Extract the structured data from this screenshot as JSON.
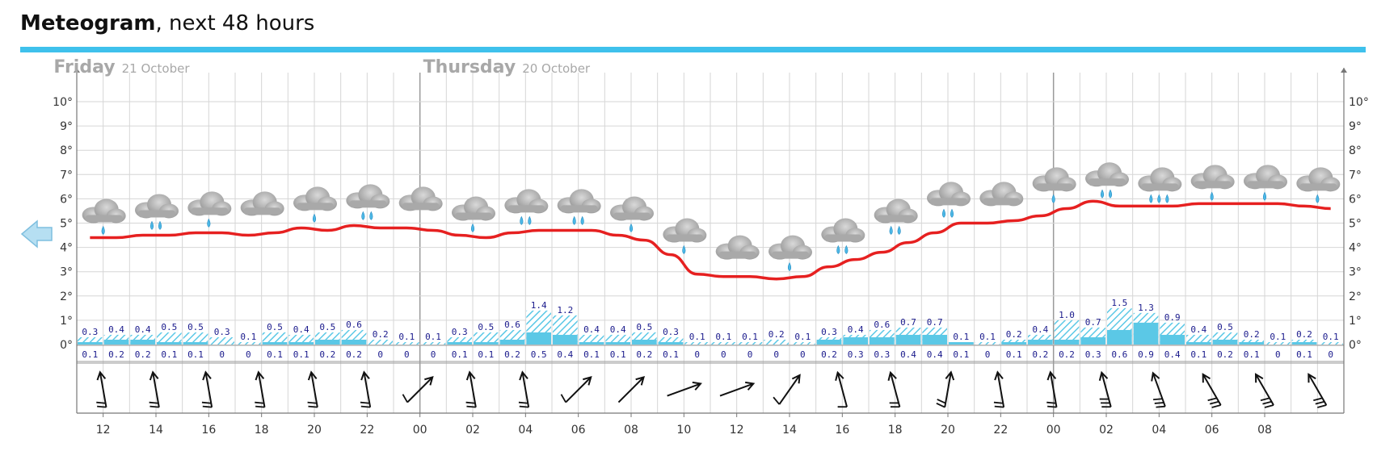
{
  "header": {
    "title_bold": "Meteogram",
    "title_rest": ", next 48 hours"
  },
  "colors": {
    "accent": "#3fc1ec",
    "temperature": "#e62020",
    "precip": "#5bc8e6",
    "grid": "#d6d6d6",
    "day_label": "#a8a8a8",
    "value_text": "#1a1a8c"
  },
  "nav": {
    "back_icon": "arrow-left-icon"
  },
  "chart_data": {
    "type": "meteogram",
    "title": "Meteogram, next 48 hours",
    "x_tick_labels": [
      "12",
      "14",
      "16",
      "18",
      "20",
      "22",
      "00",
      "02",
      "04",
      "06",
      "08",
      "10",
      "12",
      "14",
      "16",
      "18",
      "20",
      "22",
      "00",
      "02",
      "04",
      "06",
      "08"
    ],
    "day_labels": [
      {
        "name": "Thursday",
        "date": "20 October",
        "at_hour": 0
      },
      {
        "name": "Friday",
        "date": "21 October",
        "at_hour": 24
      }
    ],
    "y_ticks": [
      "0°",
      "1°",
      "2°",
      "3°",
      "4°",
      "5°",
      "6°",
      "7°",
      "8°",
      "9°",
      "10°"
    ],
    "ylim": [
      0,
      10
    ],
    "hours": [
      11,
      12,
      13,
      14,
      15,
      16,
      17,
      18,
      19,
      20,
      21,
      22,
      23,
      0,
      1,
      2,
      3,
      4,
      5,
      6,
      7,
      8,
      9,
      10,
      11,
      12,
      13,
      14,
      15,
      16,
      17,
      18,
      19,
      20,
      21,
      22,
      23,
      0,
      1,
      2,
      3,
      4,
      5,
      6,
      7,
      8,
      9,
      10
    ],
    "temperature": [
      4.4,
      4.4,
      4.5,
      4.5,
      4.6,
      4.6,
      4.5,
      4.6,
      4.8,
      4.7,
      4.9,
      4.8,
      4.8,
      4.7,
      4.5,
      4.4,
      4.6,
      4.7,
      4.7,
      4.7,
      4.5,
      4.3,
      3.7,
      2.9,
      2.8,
      2.8,
      2.7,
      2.8,
      3.2,
      3.5,
      3.8,
      4.2,
      4.6,
      5.0,
      5.0,
      5.1,
      5.3,
      5.6,
      5.9,
      5.7,
      5.7,
      5.7,
      5.8,
      5.8,
      5.8,
      5.8,
      5.7,
      5.6
    ],
    "precip_upper": [
      0.3,
      0.4,
      0.4,
      0.5,
      0.5,
      0.3,
      0.1,
      0.5,
      0.4,
      0.5,
      0.6,
      0.2,
      0.1,
      0.1,
      0.3,
      0.5,
      0.6,
      1.4,
      1.2,
      0.4,
      0.4,
      0.5,
      0.3,
      0.1,
      0.1,
      0.1,
      0.2,
      0.1,
      0.3,
      0.4,
      0.6,
      0.7,
      0.7,
      0.1,
      0.1,
      0.2,
      0.4,
      1.0,
      0.7,
      1.5,
      1.3,
      0.9,
      0.4,
      0.5,
      0.2,
      0.1,
      0.2,
      0.1
    ],
    "precip_lower": [
      0.1,
      0.2,
      0.2,
      0.1,
      0.1,
      0,
      0,
      0.1,
      0.1,
      0.2,
      0.2,
      0,
      0,
      0,
      0.1,
      0.1,
      0.2,
      0.5,
      0.4,
      0.1,
      0.1,
      0.2,
      0.1,
      0,
      0,
      0,
      0,
      0,
      0.2,
      0.3,
      0.3,
      0.4,
      0.4,
      0.1,
      0,
      0.1,
      0.2,
      0.2,
      0.3,
      0.6,
      0.9,
      0.4,
      0.1,
      0.2,
      0.1,
      0,
      0.1,
      0
    ],
    "precip_upper_labels": [
      "0.3",
      "0.4",
      "0.4",
      "0.5",
      "0.5",
      "0.3",
      "0.1",
      "0.5",
      "0.4",
      "0.5",
      "0.6",
      "0.2",
      "0.1",
      "0.1",
      "0.3",
      "0.5",
      "0.6",
      "1.4",
      "1.2",
      "0.4",
      "0.4",
      "0.5",
      "0.3",
      "0.1",
      "0.1",
      "0.1",
      "0.2",
      "0.1",
      "0.3",
      "0.4",
      "0.6",
      "0.7",
      "0.7",
      "0.1",
      "0.1",
      "0.2",
      "0.4",
      "1.0",
      "0.7",
      "1.5",
      "1.3",
      "0.9",
      "0.4",
      "0.5",
      "0.2",
      "0.1",
      "0.2",
      "0.1"
    ],
    "precip_lower_labels": [
      "0.1",
      "0.2",
      "0.2",
      "0.1",
      "0.1",
      "0",
      "0",
      "0.1",
      "0.1",
      "0.2",
      "0.2",
      "0",
      "0",
      "0",
      "0.1",
      "0.1",
      "0.2",
      "0.5",
      "0.4",
      "0.1",
      "0.1",
      "0.2",
      "0.1",
      "0",
      "0",
      "0",
      "0",
      "0",
      "0.2",
      "0.3",
      "0.3",
      "0.4",
      "0.4",
      "0.1",
      "0",
      "0.1",
      "0.2",
      "0.2",
      "0.3",
      "0.6",
      "0.9",
      "0.4",
      "0.1",
      "0.2",
      "0.1",
      "0",
      "0.1",
      "0"
    ],
    "symbols": [
      {
        "temp": 5.4,
        "drops": 1
      },
      {
        "temp": 5.6,
        "drops": 2
      },
      {
        "temp": 5.7,
        "drops": 1
      },
      {
        "temp": 5.7,
        "drops": 0
      },
      {
        "temp": 5.9,
        "drops": 1
      },
      {
        "temp": 6.0,
        "drops": 2
      },
      {
        "temp": 5.9,
        "drops": 0
      },
      {
        "temp": 5.5,
        "drops": 1
      },
      {
        "temp": 5.8,
        "drops": 2
      },
      {
        "temp": 5.8,
        "drops": 2
      },
      {
        "temp": 5.5,
        "drops": 1
      },
      {
        "temp": 4.6,
        "drops": 1
      },
      {
        "temp": 3.9,
        "drops": 0
      },
      {
        "temp": 3.9,
        "drops": 1
      },
      {
        "temp": 4.6,
        "drops": 2
      },
      {
        "temp": 5.4,
        "drops": 2
      },
      {
        "temp": 6.1,
        "drops": 2
      },
      {
        "temp": 6.1,
        "drops": 0
      },
      {
        "temp": 6.7,
        "drops": 1
      },
      {
        "temp": 6.9,
        "drops": 2
      },
      {
        "temp": 6.7,
        "drops": 3
      },
      {
        "temp": 6.8,
        "drops": 1
      },
      {
        "temp": 6.8,
        "drops": 1
      },
      {
        "temp": 6.7,
        "drops": 1
      }
    ],
    "wind_directions": [
      170,
      170,
      170,
      170,
      170,
      170,
      225,
      170,
      170,
      225,
      225,
      250,
      250,
      215,
      165,
      165,
      190,
      170,
      170,
      165,
      160,
      150,
      150,
      150
    ],
    "wind_barb_lines": [
      2,
      2,
      2,
      2,
      2,
      2,
      1,
      2,
      2,
      1,
      0,
      0,
      0,
      1,
      1,
      2,
      2,
      2,
      2,
      3,
      3,
      3,
      3,
      3
    ]
  }
}
